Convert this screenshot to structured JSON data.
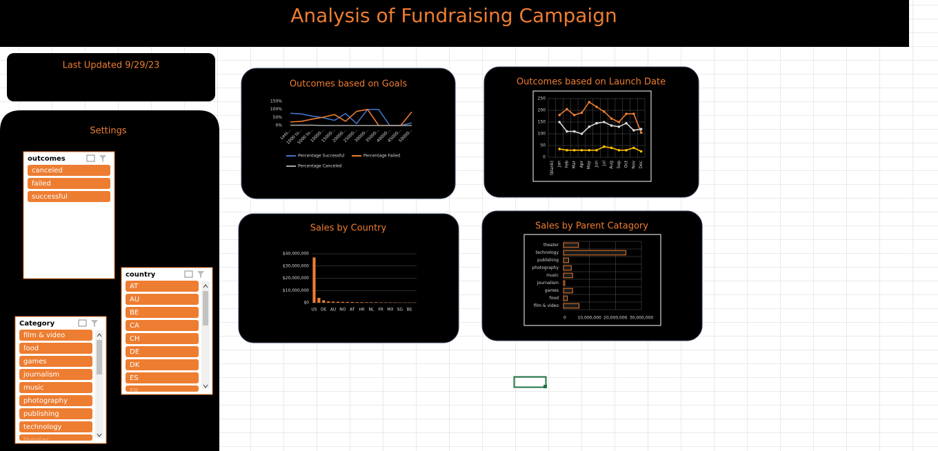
{
  "header": {
    "title": "Analysis of Fundraising Campaign"
  },
  "last_updated": "Last Updated 9/29/23",
  "settings": {
    "title": "Settings",
    "slicers": [
      {
        "title": "outcomes",
        "items": [
          "canceled",
          "failed",
          "successful"
        ]
      },
      {
        "title": "country",
        "items": [
          "AT",
          "AU",
          "BE",
          "CA",
          "CH",
          "DE",
          "DK",
          "ES",
          "FR"
        ]
      },
      {
        "title": "Category",
        "items": [
          "film & video",
          "food",
          "games",
          "journalism",
          "music",
          "photography",
          "publishing",
          "technology",
          "theater"
        ]
      }
    ]
  },
  "chart_data": [
    {
      "type": "line",
      "title": "Outcomes based on Goals",
      "categories": [
        "Less...",
        "1000 to...",
        "5000 to...",
        "10000...",
        "15000...",
        "20000...",
        "25000...",
        "30000...",
        "35000...",
        "40000...",
        "45000...",
        "50000..."
      ],
      "series": [
        {
          "name": "Percentage Successful",
          "color": "#4472c4",
          "values": [
            76,
            72,
            58,
            48,
            32,
            74,
            12,
            100,
            100,
            0,
            0,
            16
          ]
        },
        {
          "name": "Percentage Failed",
          "color": "#ed7d31",
          "values": [
            22,
            26,
            40,
            52,
            68,
            26,
            88,
            100,
            0,
            0,
            0,
            84
          ]
        },
        {
          "name": "Percentage Canceled",
          "color": "#a5a5a5",
          "values": [
            2,
            2,
            2,
            0,
            0,
            0,
            0,
            0,
            0,
            0,
            0,
            0
          ]
        }
      ],
      "ylim": [
        0,
        150
      ],
      "yticks": [
        {
          "value": 0,
          "label": "0%"
        },
        {
          "value": 50,
          "label": "50%"
        },
        {
          "value": 100,
          "label": "100%"
        },
        {
          "value": 150,
          "label": "150%"
        }
      ],
      "grid": false,
      "legend": "bottom"
    },
    {
      "type": "line",
      "title": "Outcomes based on Launch Date",
      "categories": [
        "(blank)",
        "Jan",
        "Feb",
        "Mar",
        "Apr",
        "May",
        "Jun",
        "Jul",
        "Aug",
        "Sep",
        "Oct",
        "Nov",
        "Dec"
      ],
      "series": [
        {
          "color": "#ed7d31",
          "values": [
            null,
            180,
            205,
            180,
            190,
            235,
            215,
            195,
            165,
            150,
            185,
            185,
            105
          ]
        },
        {
          "color": "#d9d9d9",
          "values": [
            null,
            150,
            110,
            110,
            100,
            130,
            145,
            150,
            135,
            130,
            145,
            115,
            120
          ]
        },
        {
          "color": "#ffc000",
          "values": [
            null,
            35,
            30,
            30,
            30,
            30,
            30,
            45,
            40,
            30,
            30,
            40,
            25
          ]
        }
      ],
      "ylim": [
        0,
        250
      ],
      "yticks": [
        0,
        50,
        100,
        150,
        200,
        250
      ],
      "grid": true,
      "markers": true
    },
    {
      "type": "bar",
      "title": "Sales by Country",
      "categories": [
        "US",
        null,
        "DE",
        null,
        "AU",
        null,
        "NO",
        null,
        "AT",
        null,
        "HK",
        null,
        "NL",
        null,
        "FR",
        null,
        "MX",
        null,
        "SG",
        null,
        "BE",
        null
      ],
      "values": [
        37000000,
        4000000,
        2000000,
        1100000,
        900000,
        800000,
        700000,
        600000,
        600000,
        500000,
        500000,
        400000,
        400000,
        400000,
        300000,
        300000,
        300000,
        300000,
        200000,
        200000,
        200000,
        200000
      ],
      "color": "#ed7d31",
      "ylim": [
        0,
        40000000
      ],
      "yticks": [
        {
          "value": 0,
          "label": "$0"
        },
        {
          "value": 10000000,
          "label": "$10,000,000"
        },
        {
          "value": 20000000,
          "label": "$20,000,000"
        },
        {
          "value": 30000000,
          "label": "$30,000,000"
        },
        {
          "value": 40000000,
          "label": "$40,000,000"
        }
      ],
      "grid": true
    },
    {
      "type": "hbar",
      "title": "Sales by Parent Catagory",
      "categories": [
        "film & video",
        "food",
        "games",
        "journalism",
        "music",
        "photography",
        "publishing",
        "technology",
        "theater"
      ],
      "values": [
        6000000,
        1500000,
        3500000,
        500000,
        3500000,
        3000000,
        2000000,
        24000000,
        5800000
      ],
      "color": "#ed7d31",
      "xlim": [
        0,
        30000000
      ],
      "xticks": [
        0,
        {
          "value": 10000000,
          "label": "10,000,000"
        },
        {
          "value": 20000000,
          "label": "20,000,000"
        },
        {
          "value": 30000000,
          "label": "30,000,000"
        }
      ],
      "grid": true
    }
  ]
}
